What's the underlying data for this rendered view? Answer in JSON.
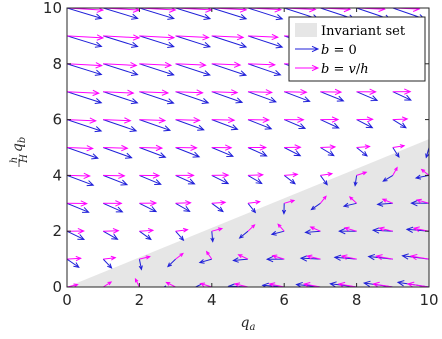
{
  "chart_data": {
    "type": "quiver",
    "xlim": [
      0,
      10
    ],
    "ylim": [
      0,
      10
    ],
    "xticks": [
      0,
      2,
      4,
      6,
      8,
      10
    ],
    "yticks": [
      0,
      2,
      4,
      6,
      8,
      10
    ],
    "xlabel": "q_a",
    "ylabel": "(h/H) q_b",
    "invariant_region": {
      "polygon": [
        [
          0,
          0
        ],
        [
          10,
          5.3
        ],
        [
          10,
          0
        ]
      ],
      "color": "#e6e6e6"
    },
    "grid_x": [
      0,
      1,
      2,
      3,
      4,
      5,
      6,
      7,
      8,
      9,
      10
    ],
    "grid_y": [
      0,
      1,
      2,
      3,
      4,
      5,
      6,
      7,
      8,
      9,
      10
    ],
    "legend": {
      "position": "top-right",
      "entries": [
        {
          "label": "Invariant set",
          "kind": "patch",
          "color": "#e6e6e6"
        },
        {
          "label": "b = 0",
          "kind": "arrow",
          "color": "#1f1fd9"
        },
        {
          "label": "b = v/h",
          "kind": "arrow",
          "color": "#ff00ff"
        }
      ]
    },
    "series": [
      {
        "name": "b = 0",
        "color": "#1f1fd9"
      },
      {
        "name": "b = v/h",
        "color": "#ff00ff"
      }
    ]
  }
}
